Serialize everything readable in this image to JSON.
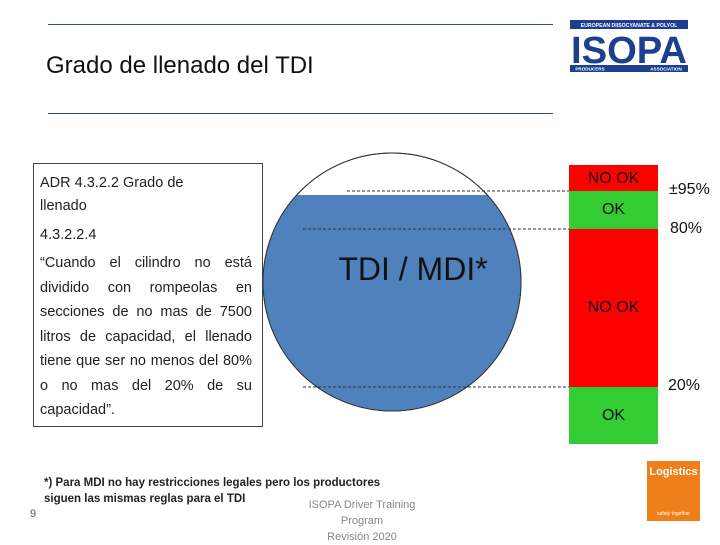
{
  "slide": {
    "title": "Grado de llenado del  TDI",
    "page_number": "9",
    "footer_line1": "ISOPA Driver Training Program",
    "footer_line2": "Revisión 2020"
  },
  "logo": {
    "top_text": "EUROPEAN DIISOCYANATE & POLYOL",
    "main_text": "ISOPA",
    "left_sub": "PRODUCERS",
    "right_sub": "ASSOCIATION",
    "color": "#1d3f8f"
  },
  "textbox": {
    "heading_line1": "ADR 4.3.2.2 Grado de",
    "heading_line2": "llenado",
    "subheading": "4.3.2.2.4",
    "body": "“Cuando el cilindro no está dividido con rompeolas en secciones de no mas de 7500 litros de capacidad, el llenado tiene que ser no menos del 80% o no mas del 20% de su capacidad”."
  },
  "tank": {
    "label": "TDI / MDI*",
    "fill_fraction": 0.95,
    "fill_color": "#4f81bd"
  },
  "scale": {
    "segments": [
      {
        "label": "NO OK",
        "color": "#ff0000"
      },
      {
        "label": "OK",
        "color": "#33cc33"
      },
      {
        "label": "NO OK",
        "color": "#ff0000"
      },
      {
        "label": "OK",
        "color": "#33cc33"
      }
    ],
    "marks": [
      "±95%",
      "80%",
      "20%"
    ]
  },
  "footnote": {
    "line1": "*) Para MDI no hay restricciones legales pero los productores",
    "line2": "siguen las mismas reglas para el TDI"
  },
  "badge": {
    "title": "Logistics",
    "subtitle": "safety together",
    "color": "#ef7f1a"
  }
}
